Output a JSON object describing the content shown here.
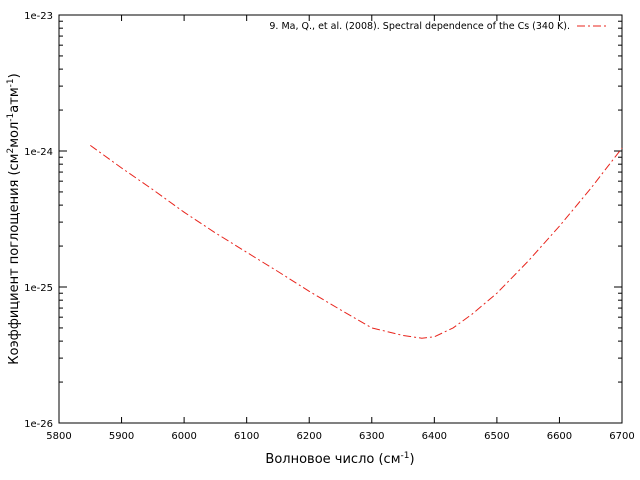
{
  "chart_data": {
    "type": "line",
    "title": "",
    "xlabel": "Волновое число (см-1)",
    "xlabel_parts": {
      "base": "Волновое число (см",
      "sup": "-1",
      "tail": ")"
    },
    "ylabel": "Коэффициент поглощения (см2мол-1атм-1)",
    "ylabel_parts": {
      "base": "Коэффициент поглощения (см",
      "sup1": "2",
      "mid": "мол",
      "sup2": "-1",
      "mid2": "атм",
      "sup3": "-1",
      "tail": ")"
    },
    "x_scale": "linear",
    "y_scale": "log",
    "xlim": [
      5800,
      6700
    ],
    "ylim": [
      1e-26,
      1e-23
    ],
    "x_ticks": [
      5800,
      5900,
      6000,
      6100,
      6200,
      6300,
      6400,
      6500,
      6600,
      6700
    ],
    "x_tick_labels": [
      "5800",
      "5900",
      "6000",
      "6100",
      "6200",
      "6300",
      "6400",
      "6500",
      "6600",
      "6700"
    ],
    "y_ticks": [
      1e-26,
      1e-25,
      1e-24,
      1e-23
    ],
    "y_tick_labels": [
      "1e-26",
      "1e-25",
      "1e-24",
      "1e-23"
    ],
    "grid": false,
    "legend_position": "top-right",
    "series": [
      {
        "name": "9. Ma, Q., et al. (2008). Spectral dependence of the Cs (340 K).",
        "color": "#e8241c",
        "line_style": "dash-dot",
        "x": [
          5850,
          5900,
          5950,
          6000,
          6050,
          6100,
          6150,
          6200,
          6250,
          6300,
          6350,
          6380,
          6400,
          6430,
          6460,
          6500,
          6550,
          6600,
          6650,
          6700
        ],
        "y": [
          1.1e-24,
          7.5e-25,
          5.2e-25,
          3.55e-25,
          2.5e-25,
          1.8e-25,
          1.3e-25,
          9.3e-26,
          6.8e-26,
          5e-26,
          4.4e-26,
          4.2e-26,
          4.3e-26,
          5e-26,
          6.3e-26,
          9e-26,
          1.55e-25,
          2.8e-25,
          5.3e-25,
          1.05e-24
        ]
      }
    ]
  }
}
